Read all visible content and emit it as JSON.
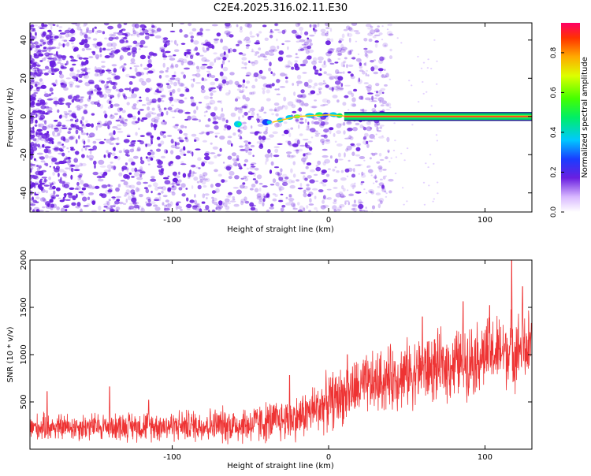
{
  "title": "C2E4.2025.316.02.11.E30",
  "colors": {
    "snr_line": "#ee3333",
    "speckle": "#6a1fe0",
    "frame": "#000000"
  },
  "chart_data": [
    {
      "type": "heatmap",
      "name": "spectrogram",
      "xlabel": "Height of straight line (km)",
      "ylabel": "Frequency (Hz)",
      "xlim": [
        -191,
        130
      ],
      "ylim": [
        -50,
        49
      ],
      "xticks": [
        -100,
        0,
        100
      ],
      "xtick_labels": [
        "-100",
        "0",
        "100"
      ],
      "yticks": [
        -40,
        -20,
        0,
        20,
        40
      ],
      "ytick_labels": [
        "-40",
        "-20",
        "0",
        "20",
        "40"
      ],
      "signal_line_hz": 0,
      "signal_band_hz": [
        -1.5,
        1.5
      ],
      "signal_start_km": -36,
      "colorbar": {
        "label": "Normalized spectral amplitude",
        "range": [
          0,
          0.95
        ],
        "ticks": [
          0,
          0.2,
          0.4,
          0.6,
          0.8
        ],
        "tick_labels": [
          "0.0",
          "0.2",
          "0.4",
          "0.6",
          "0.8"
        ]
      }
    },
    {
      "type": "line",
      "name": "snr",
      "xlabel": "Height of straight line (km)",
      "ylabel": "SNR (10 * v/v)",
      "xlim": [
        -191,
        130
      ],
      "ylim": [
        0,
        2000
      ],
      "xticks": [
        -100,
        0,
        100
      ],
      "xtick_labels": [
        "-100",
        "0",
        "100"
      ],
      "yticks": [
        500,
        1000,
        1500,
        2000
      ],
      "ytick_labels": [
        "500",
        "1000",
        "1500",
        "2000"
      ],
      "trend_x": [
        -191,
        -150,
        -100,
        -50,
        -20,
        0,
        20,
        50,
        80,
        100,
        120,
        130
      ],
      "trend_y": [
        230,
        240,
        250,
        260,
        330,
        500,
        650,
        800,
        900,
        1000,
        1060,
        1080
      ],
      "spread_x": [
        -191,
        -100,
        -20,
        0,
        50,
        100,
        130
      ],
      "spread_y": [
        130,
        150,
        220,
        280,
        330,
        360,
        380
      ],
      "peak_values": [
        {
          "x": -180,
          "y": 610
        },
        {
          "x": -140,
          "y": 660
        },
        {
          "x": -115,
          "y": 520
        },
        {
          "x": -25,
          "y": 780
        },
        {
          "x": 12,
          "y": 1000
        },
        {
          "x": 60,
          "y": 1400
        },
        {
          "x": 86,
          "y": 1560
        },
        {
          "x": 103,
          "y": 1520
        },
        {
          "x": 117,
          "y": 2000
        },
        {
          "x": 124,
          "y": 1720
        }
      ]
    }
  ]
}
